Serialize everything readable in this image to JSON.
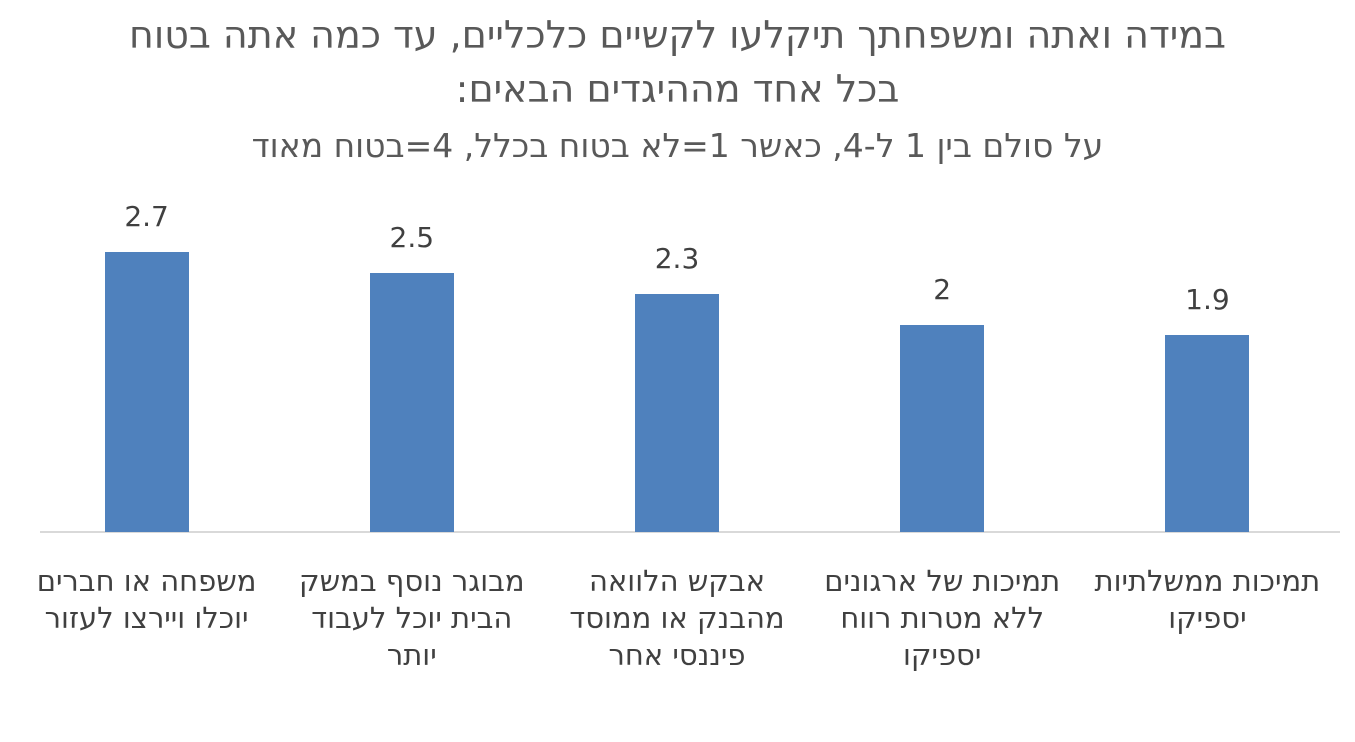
{
  "chart_data": {
    "type": "bar",
    "title": "במידה ואתה ומשפחתך תיקלעו לקשיים כלכליים, עד כמה אתה בטוח בכל אחד מההיגדים הבאים:",
    "subtitle": "על סולם בין 1 ל-4, כאשר 1=לא בטוח בכלל, 4=בטוח מאוד",
    "categories": [
      "משפחה או חברים יוכלו ויירצו לעזור",
      "מבוגר נוסף במשק הבית יוכל לעבוד יותר",
      "אבקש הלוואה מהבנק או ממוסד פיננסי אחר",
      "תמיכות של ארגונים ללא מטרות רווח יספיקו",
      "תמיכות ממשלתיות יספיקו"
    ],
    "values": [
      2.7,
      2.5,
      2.3,
      2,
      1.9
    ],
    "color": "#4f81bd",
    "ylim": [
      0,
      3
    ]
  }
}
